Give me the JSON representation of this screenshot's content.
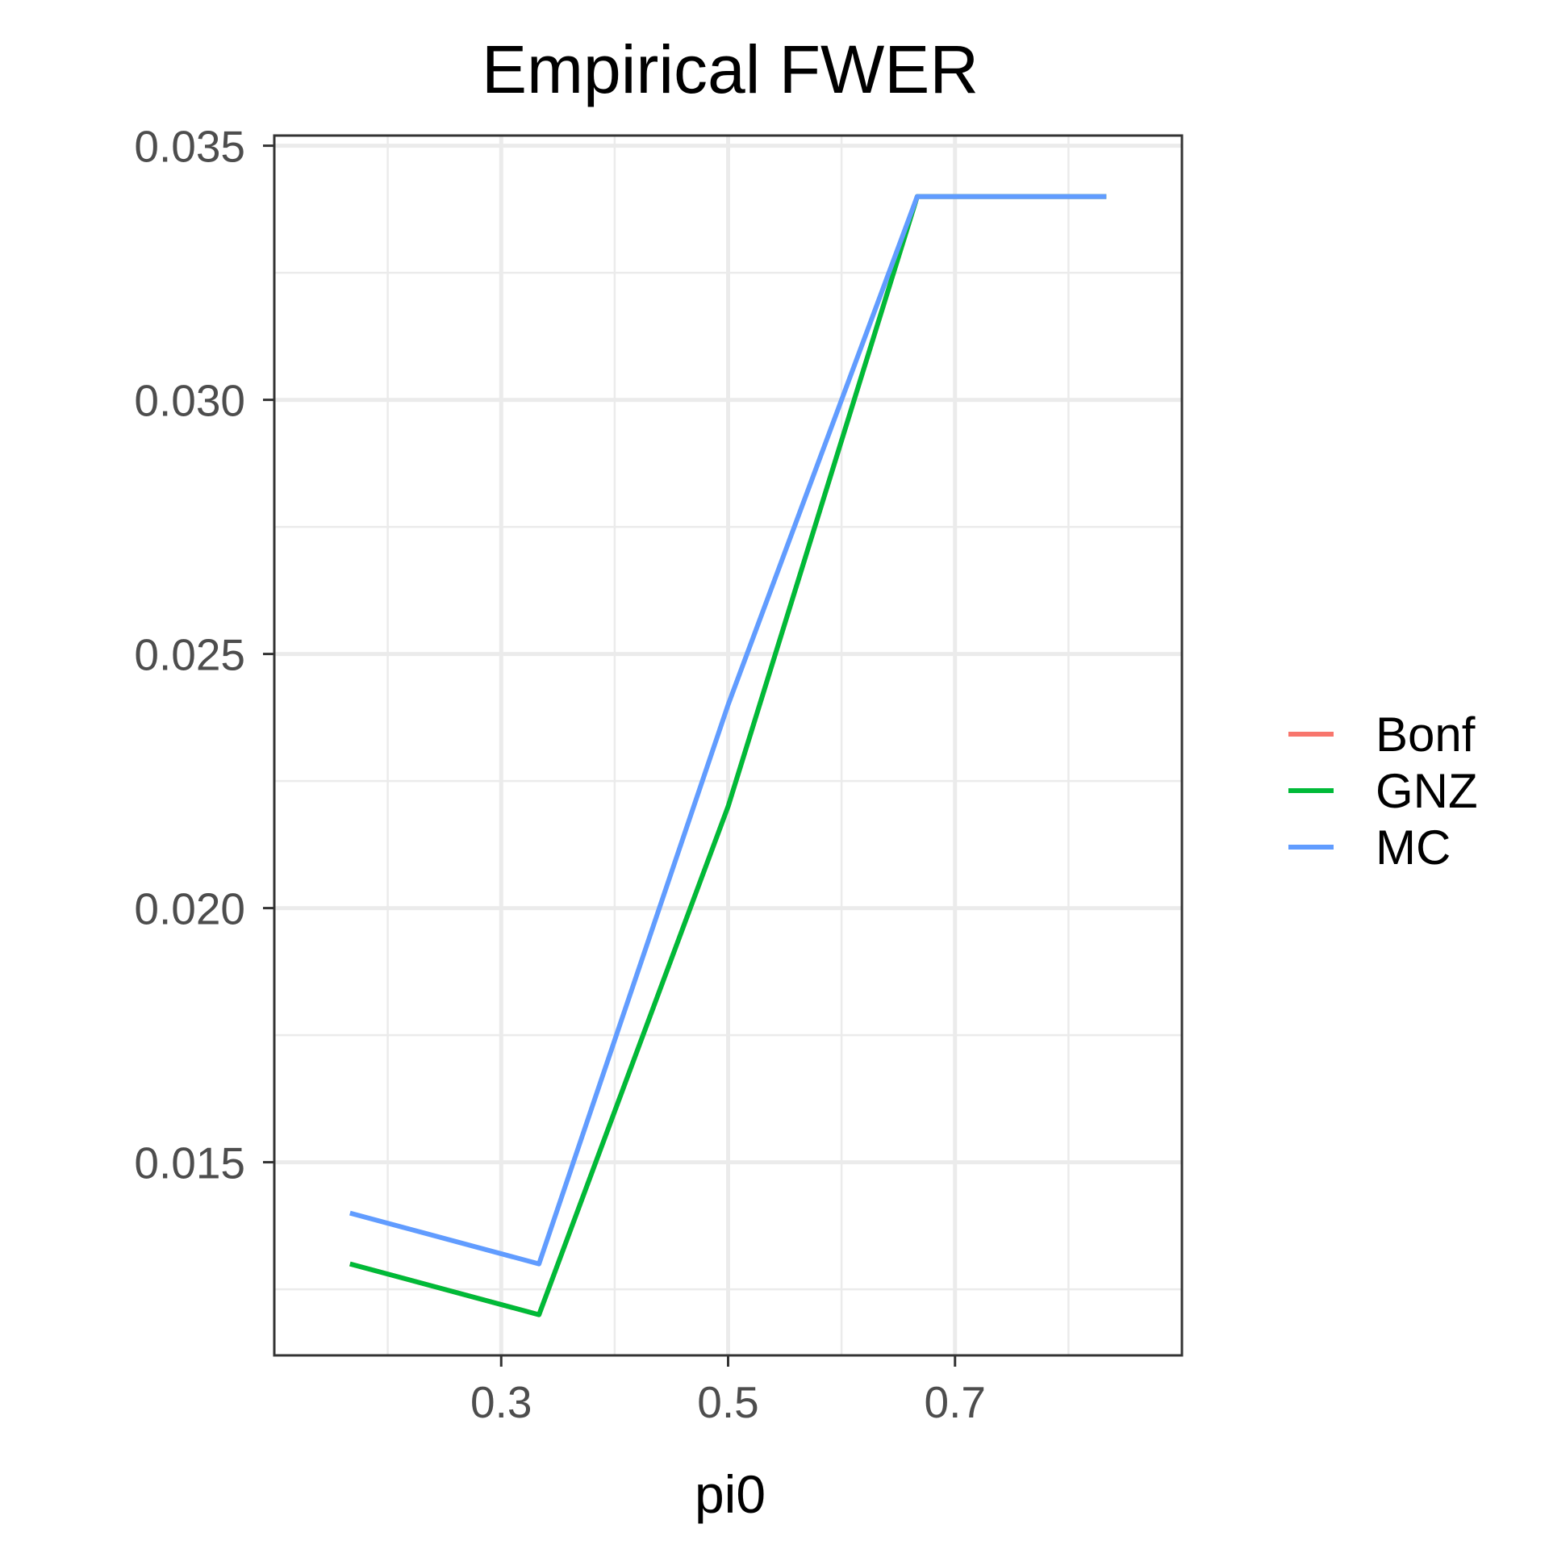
{
  "chart_data": {
    "type": "line",
    "title": "Empirical FWER",
    "xlabel": "pi0",
    "ylabel": "",
    "x": [
      0.1667,
      0.3333,
      0.5,
      0.6667,
      0.8333
    ],
    "xlim": [
      0.1,
      0.9
    ],
    "ylim": [
      0.0112,
      0.0352
    ],
    "x_major_ticks": [
      0.3,
      0.5,
      0.7
    ],
    "x_tick_labels": [
      "0.3",
      "0.5",
      "0.7"
    ],
    "x_minor_ticks": [
      0.2,
      0.4,
      0.6,
      0.8
    ],
    "y_major_ticks": [
      0.015,
      0.02,
      0.025,
      0.03,
      0.035
    ],
    "y_tick_labels": [
      "0.015",
      "0.020",
      "0.025",
      "0.030",
      "0.035"
    ],
    "y_minor_ticks": [
      0.0125,
      0.0175,
      0.0225,
      0.0275,
      0.0325
    ],
    "grid": true,
    "legend_position": "right",
    "series": [
      {
        "name": "Bonf",
        "color": "#f8766d",
        "values": [
          0.013,
          0.012,
          0.022,
          0.034,
          0.034
        ]
      },
      {
        "name": "GNZ",
        "color": "#00ba38",
        "values": [
          0.013,
          0.012,
          0.022,
          0.034,
          0.034
        ]
      },
      {
        "name": "MC",
        "color": "#619cff",
        "values": [
          0.014,
          0.013,
          0.024,
          0.034,
          0.034
        ]
      }
    ]
  }
}
